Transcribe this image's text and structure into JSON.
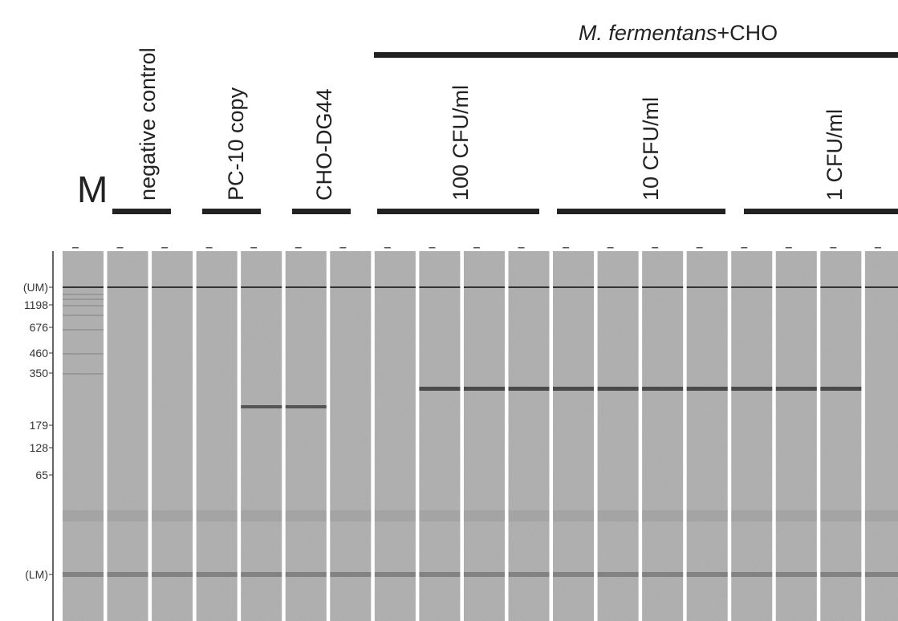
{
  "header": {
    "marker": "M",
    "group_title": {
      "italic": "M. fermentans",
      "rest": "+CHO"
    },
    "lanes": [
      "negative control",
      "PC-10 copy",
      "CHO-DG44",
      "100 CFU/ml",
      "10 CFU/ml",
      "1 CFU/ml"
    ]
  },
  "markers": [
    "(UM)",
    "1198",
    "676",
    "460",
    "350",
    "179",
    "128",
    "65",
    "(LM)"
  ]
}
